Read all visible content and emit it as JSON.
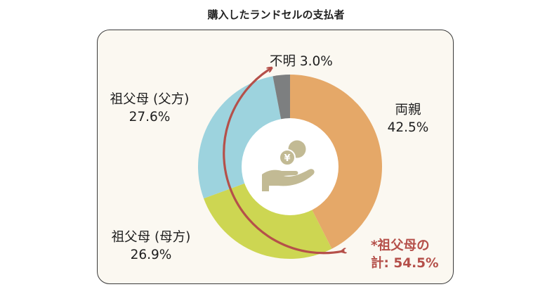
{
  "title": "購入したランドセルの支払者",
  "labels": {
    "ryoshin_name": "両親",
    "ryoshin_pct": "42.5%",
    "fuho_name": "祖父母 (父方)",
    "fuho_pct": "27.6%",
    "boho_name": "祖父母 (母方)",
    "boho_pct": "26.9%",
    "fumei": "不明 3.0%",
    "total_line1": "*祖父母の",
    "total_line2": "計: 54.5%"
  },
  "colors": {
    "ryoshin": "#e5a868",
    "boho": "#cdd652",
    "fuho": "#9dd3de",
    "fumei": "#7d7f80",
    "arrow": "#b5504a",
    "icon": "#c2ba94",
    "center": "#ffffff"
  },
  "icon": "hand-holding-yen-coin-icon",
  "chart_data": {
    "type": "pie",
    "donut": true,
    "title": "購入したランドセルの支払者",
    "start": "12 o'clock",
    "direction": "clockwise",
    "categories": [
      "両親",
      "祖父母 (母方)",
      "祖父母 (父方)",
      "不明"
    ],
    "values": [
      42.5,
      26.9,
      27.6,
      3.0
    ],
    "unit": "%",
    "annotation": "*祖父母の 計: 54.5%"
  }
}
